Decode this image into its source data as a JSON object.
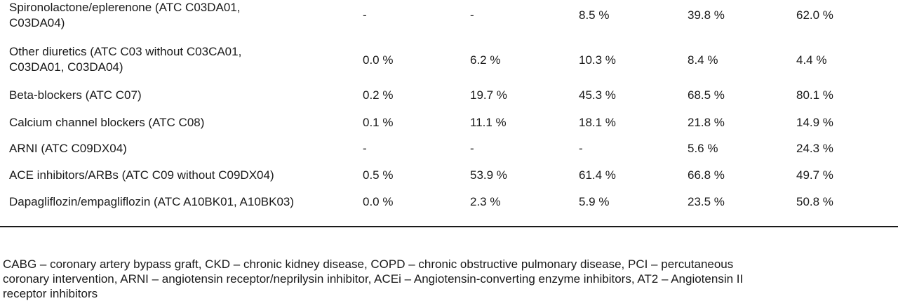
{
  "rows": [
    {
      "label_line1": "Spironolactone/eplerenone (ATC C03DA01,",
      "label_line2": "C03DA04)",
      "values": [
        "-",
        "-",
        "8.5 %",
        "39.8 %",
        "62.0 %"
      ]
    },
    {
      "label_line1": "Other diuretics (ATC C03 without C03CA01,",
      "label_line2": "C03DA01, C03DA04)",
      "values": [
        "0.0 %",
        "6.2 %",
        "10.3 %",
        "8.4 %",
        "4.4 %"
      ]
    },
    {
      "label": "Beta-blockers (ATC C07)",
      "values": [
        "0.2 %",
        "19.7 %",
        "45.3 %",
        "68.5 %",
        "80.1 %"
      ]
    },
    {
      "label": "Calcium channel blockers (ATC C08)",
      "values": [
        "0.1 %",
        "11.1 %",
        "18.1 %",
        "21.8 %",
        "14.9 %"
      ]
    },
    {
      "label": "ARNI (ATC C09DX04)",
      "values": [
        "-",
        "-",
        "-",
        "5.6 %",
        "24.3 %"
      ]
    },
    {
      "label": "ACE inhibitors/ARBs (ATC C09 without C09DX04)",
      "values": [
        "0.5 %",
        "53.9 %",
        "61.4 %",
        "66.8 %",
        "49.7 %"
      ]
    },
    {
      "label": "Dapagliflozin/empagliflozin (ATC A10BK01, A10BK03)",
      "values": [
        "0.0 %",
        "2.3 %",
        "5.9 %",
        "23.5 %",
        "50.8 %"
      ]
    }
  ],
  "footnote": {
    "line1": "CABG – coronary artery bypass graft, CKD – chronic kidney disease, COPD – chronic obstructive pulmonary disease, PCI – percutaneous",
    "line2": "coronary intervention, ARNI – angiotensin receptor/neprilysin inhibitor, ACEi – Angiotensin-converting enzyme inhibitors, AT2 – Angiotensin II",
    "line3": "receptor inhibitors"
  }
}
